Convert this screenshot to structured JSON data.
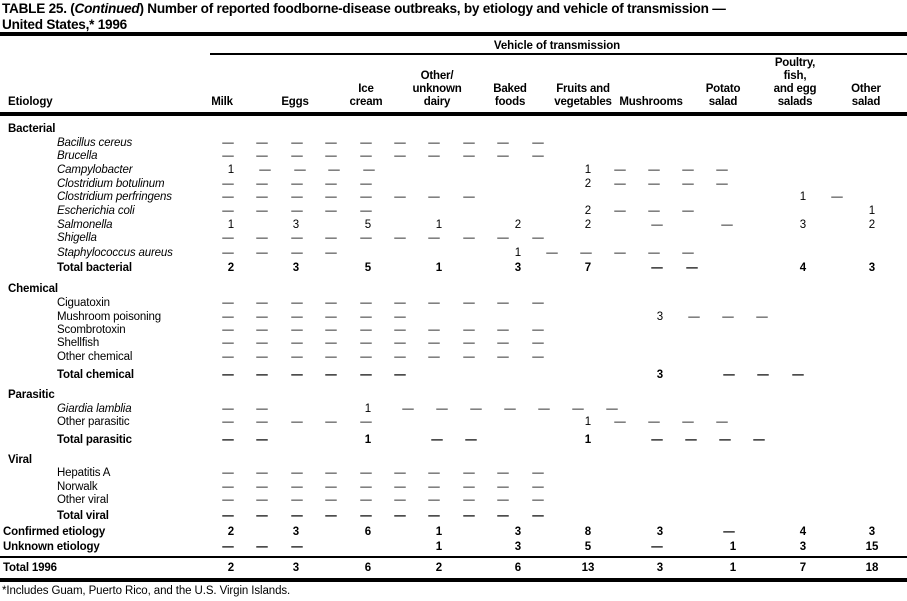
{
  "title": {
    "prefix": "TABLE 25. (",
    "continued": "Continued",
    "rest": ") Number of reported foodborne-disease outbreaks, by etiology and vehicle of transmission —",
    "line2": "United States,* 1996"
  },
  "table": {
    "group_header": "Vehicle of transmission",
    "etiology_header": "Etiology",
    "columns": [
      "Milk",
      "Eggs",
      "Ice\ncream",
      "Other/\nunknown\ndairy",
      "Baked\nfoods",
      "Fruits and\nvegetables",
      "Mushrooms",
      "Potato\nsalad",
      "Poultry,\nfish,\nand egg\nsalads",
      "Other\nsalad"
    ],
    "rows": [
      {
        "label": "Bacterial",
        "style": "section",
        "cells": []
      },
      {
        "label": "Bacillus cereus",
        "style": "species",
        "cells": [
          "—",
          "—",
          "—",
          "—",
          "—",
          "—",
          "—",
          "—",
          "—",
          "—"
        ]
      },
      {
        "label": "Brucella",
        "style": "species",
        "cells": [
          "—",
          "—",
          "—",
          "—",
          "—",
          "—",
          "—",
          "—",
          "—",
          "—"
        ]
      },
      {
        "label": "Campylobacter",
        "style": "species",
        "cells": [
          "1",
          "—",
          "—",
          "—",
          "—",
          "1",
          "—",
          "—",
          "—",
          "—"
        ]
      },
      {
        "label": "Clostridium botulinum",
        "style": "species",
        "cells": [
          "—",
          "—",
          "—",
          "—",
          "—",
          "2",
          "—",
          "—",
          "—",
          "—"
        ]
      },
      {
        "label": "Clostridium perfringens",
        "style": "species",
        "cells": [
          "—",
          "—",
          "—",
          "—",
          "—",
          "—",
          "—",
          "—",
          "1",
          "—"
        ]
      },
      {
        "label": "Escherichia coli",
        "style": "species",
        "cells": [
          "—",
          "—",
          "—",
          "—",
          "—",
          "2",
          "—",
          "—",
          "—",
          "1"
        ]
      },
      {
        "label": "Salmonella",
        "style": "species",
        "cells": [
          "1",
          "3",
          "5",
          "1",
          "2",
          "2",
          "—",
          "—",
          "3",
          "2"
        ]
      },
      {
        "label": "Shigella",
        "style": "species",
        "cells": [
          "—",
          "—",
          "—",
          "—",
          "—",
          "—",
          "—",
          "—",
          "—",
          "—"
        ]
      },
      {
        "label": "Staphylococcus aureus",
        "style": "species",
        "cells": [
          "—",
          "—",
          "—",
          "—",
          "1",
          "—",
          "—",
          "—",
          "—",
          "—"
        ]
      },
      {
        "label": "Total bacterial",
        "style": "total",
        "cells": [
          "2",
          "3",
          "5",
          "1",
          "3",
          "7",
          "—",
          "—",
          "4",
          "3"
        ]
      },
      {
        "label": "Chemical",
        "style": "section",
        "cells": []
      },
      {
        "label": "Ciguatoxin",
        "style": "item",
        "cells": [
          "—",
          "—",
          "—",
          "—",
          "—",
          "—",
          "—",
          "—",
          "—",
          "—"
        ]
      },
      {
        "label": "Mushroom poisoning",
        "style": "item",
        "cells": [
          "—",
          "—",
          "—",
          "—",
          "—",
          "—",
          "3",
          "—",
          "—",
          "—"
        ]
      },
      {
        "label": "Scombrotoxin",
        "style": "item",
        "cells": [
          "—",
          "—",
          "—",
          "—",
          "—",
          "—",
          "—",
          "—",
          "—",
          "—"
        ]
      },
      {
        "label": "Shellfish",
        "style": "item",
        "cells": [
          "—",
          "—",
          "—",
          "—",
          "—",
          "—",
          "—",
          "—",
          "—",
          "—"
        ]
      },
      {
        "label": "Other chemical",
        "style": "item",
        "cells": [
          "—",
          "—",
          "—",
          "—",
          "—",
          "—",
          "—",
          "—",
          "—",
          "—"
        ]
      },
      {
        "label": "Total chemical",
        "style": "total",
        "cells": [
          "—",
          "—",
          "—",
          "—",
          "—",
          "—",
          "3",
          "—",
          "—",
          "—"
        ]
      },
      {
        "label": "Parasitic",
        "style": "section",
        "cells": []
      },
      {
        "label": "Giardia lamblia",
        "style": "species",
        "cells": [
          "—",
          "—",
          "1",
          "—",
          "—",
          "—",
          "—",
          "—",
          "—",
          "—"
        ]
      },
      {
        "label": "Other parasitic",
        "style": "item",
        "cells": [
          "—",
          "—",
          "—",
          "—",
          "—",
          "1",
          "—",
          "—",
          "—",
          "—"
        ]
      },
      {
        "label": "Total parasitic",
        "style": "total",
        "cells": [
          "—",
          "—",
          "1",
          "—",
          "—",
          "1",
          "—",
          "—",
          "—",
          "—"
        ]
      },
      {
        "label": "Viral",
        "style": "section",
        "cells": []
      },
      {
        "label": "Hepatitis A",
        "style": "item",
        "cells": [
          "—",
          "—",
          "—",
          "—",
          "—",
          "—",
          "—",
          "—",
          "—",
          "—"
        ]
      },
      {
        "label": "Norwalk",
        "style": "item",
        "cells": [
          "—",
          "—",
          "—",
          "—",
          "—",
          "—",
          "—",
          "—",
          "—",
          "—"
        ]
      },
      {
        "label": "Other viral",
        "style": "item",
        "cells": [
          "—",
          "—",
          "—",
          "—",
          "—",
          "—",
          "—",
          "—",
          "—",
          "—"
        ]
      },
      {
        "label": "Total viral",
        "style": "total",
        "cells": [
          "—",
          "—",
          "—",
          "—",
          "—",
          "—",
          "—",
          "—",
          "—",
          "—"
        ]
      },
      {
        "label": "Confirmed etiology",
        "style": "grand",
        "cells": [
          "2",
          "3",
          "6",
          "1",
          "3",
          "8",
          "3",
          "—",
          "4",
          "3"
        ]
      },
      {
        "label": "Unknown etiology",
        "style": "grand",
        "cells": [
          "—",
          "—",
          "—",
          "1",
          "3",
          "5",
          "—",
          "1",
          "3",
          "15"
        ]
      },
      {
        "label": "Total 1996",
        "style": "grand",
        "cells": [
          "2",
          "3",
          "6",
          "2",
          "6",
          "13",
          "3",
          "1",
          "7",
          "18"
        ]
      }
    ]
  },
  "footnote": "*Includes Guam, Puerto Rico, and the U.S. Virgin Islands."
}
